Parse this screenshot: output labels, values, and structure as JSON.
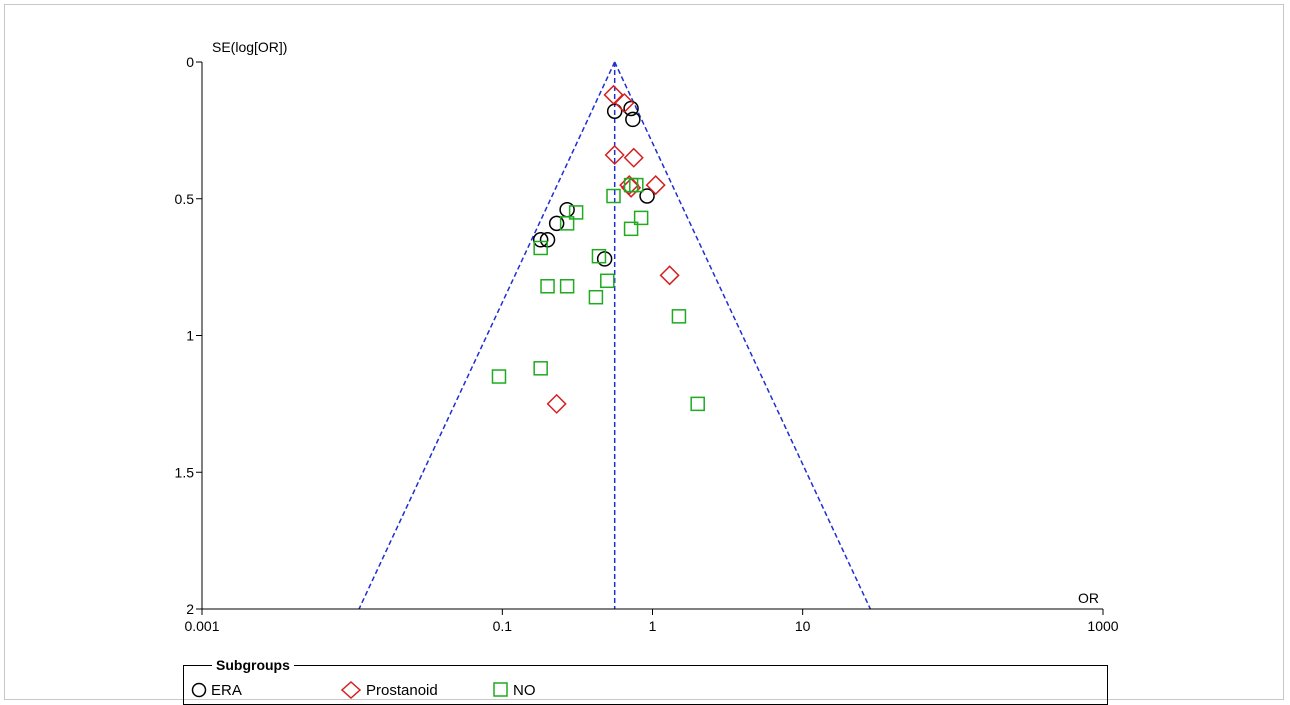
{
  "chart_data": {
    "type": "scatter",
    "title": "",
    "ylabel": "SE(log[OR])",
    "xlabel": "OR",
    "x_scale": "log",
    "x_range": [
      0.001,
      1000
    ],
    "y_range": [
      0,
      2
    ],
    "y_inverted": true,
    "x_ticks": [
      {
        "value": 0.001,
        "label": "0.001"
      },
      {
        "value": 0.1,
        "label": "0.1"
      },
      {
        "value": 1,
        "label": "1"
      },
      {
        "value": 10,
        "label": "10"
      },
      {
        "value": 1000,
        "label": "1000"
      }
    ],
    "y_ticks": [
      {
        "value": 0,
        "label": "0"
      },
      {
        "value": 0.5,
        "label": "0.5"
      },
      {
        "value": 1,
        "label": "1"
      },
      {
        "value": 1.5,
        "label": "1.5"
      },
      {
        "value": 2,
        "label": "2"
      }
    ],
    "pooled_or": 0.56,
    "funnel_color": "#1f2fd0",
    "legend": {
      "title": "Subgroups",
      "placement": "bottom"
    },
    "series": [
      {
        "name": "ERA",
        "marker": "circle",
        "color": "#000000",
        "points": [
          {
            "x": 0.56,
            "y": 0.18
          },
          {
            "x": 0.72,
            "y": 0.17
          },
          {
            "x": 0.74,
            "y": 0.21
          },
          {
            "x": 0.92,
            "y": 0.49
          },
          {
            "x": 0.27,
            "y": 0.54
          },
          {
            "x": 0.23,
            "y": 0.59
          },
          {
            "x": 0.18,
            "y": 0.65
          },
          {
            "x": 0.2,
            "y": 0.65
          },
          {
            "x": 0.48,
            "y": 0.72
          }
        ]
      },
      {
        "name": "Prostanoid",
        "marker": "diamond",
        "color": "#d42020",
        "points": [
          {
            "x": 0.55,
            "y": 0.12
          },
          {
            "x": 0.65,
            "y": 0.15
          },
          {
            "x": 0.56,
            "y": 0.34
          },
          {
            "x": 0.75,
            "y": 0.35
          },
          {
            "x": 0.7,
            "y": 0.45
          },
          {
            "x": 0.72,
            "y": 0.46
          },
          {
            "x": 1.05,
            "y": 0.45
          },
          {
            "x": 1.3,
            "y": 0.78
          },
          {
            "x": 0.23,
            "y": 1.25
          }
        ]
      },
      {
        "name": "NO",
        "marker": "square",
        "color": "#1faa1f",
        "points": [
          {
            "x": 0.72,
            "y": 0.45
          },
          {
            "x": 0.78,
            "y": 0.45
          },
          {
            "x": 0.55,
            "y": 0.49
          },
          {
            "x": 0.31,
            "y": 0.55
          },
          {
            "x": 0.27,
            "y": 0.59
          },
          {
            "x": 0.84,
            "y": 0.57
          },
          {
            "x": 0.72,
            "y": 0.61
          },
          {
            "x": 0.18,
            "y": 0.68
          },
          {
            "x": 0.44,
            "y": 0.71
          },
          {
            "x": 0.5,
            "y": 0.8
          },
          {
            "x": 0.2,
            "y": 0.82
          },
          {
            "x": 0.27,
            "y": 0.82
          },
          {
            "x": 0.42,
            "y": 0.86
          },
          {
            "x": 1.5,
            "y": 0.93
          },
          {
            "x": 0.18,
            "y": 1.12
          },
          {
            "x": 0.095,
            "y": 1.15
          },
          {
            "x": 2.0,
            "y": 1.25
          }
        ]
      }
    ]
  }
}
